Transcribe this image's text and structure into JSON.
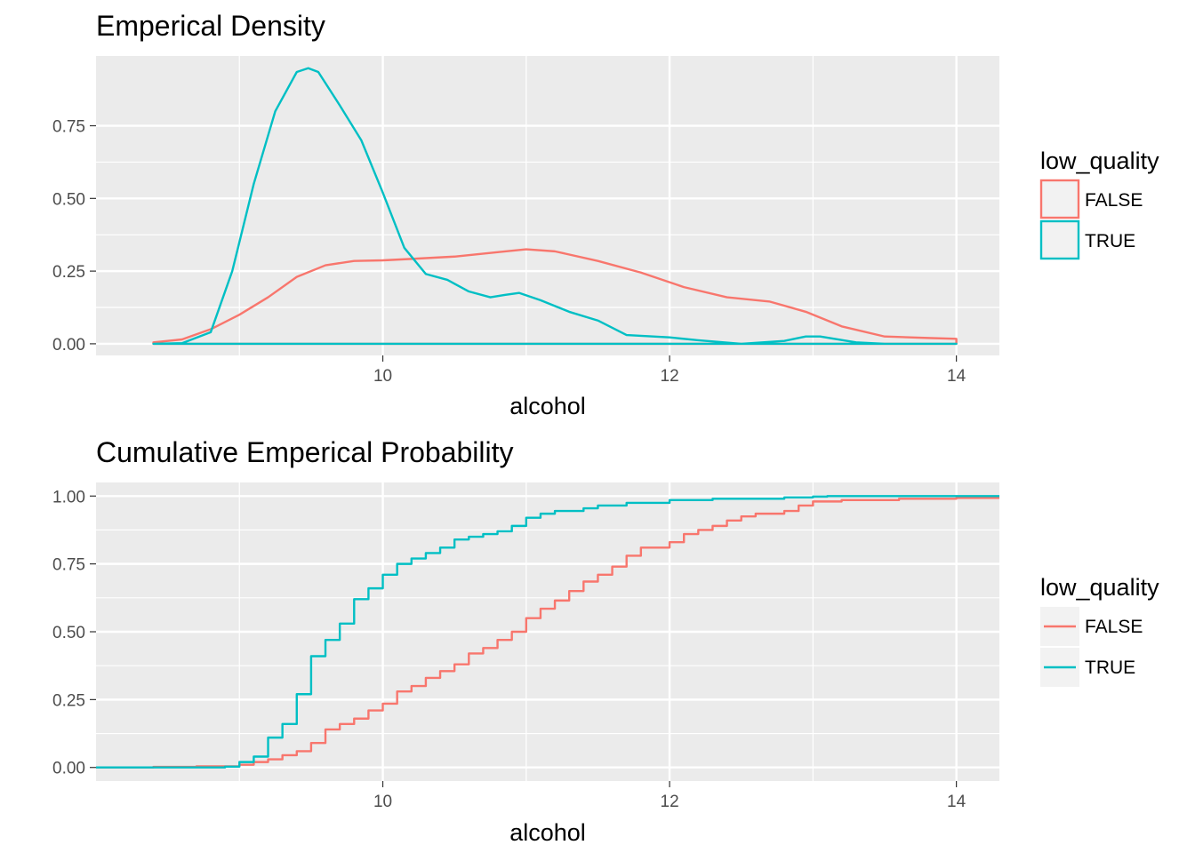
{
  "chart_data": [
    {
      "type": "line",
      "title": "Emperical Density",
      "xlabel": "alcohol",
      "ylabel": "",
      "xlim": [
        8.0,
        14.3
      ],
      "ylim": [
        -0.04,
        0.99
      ],
      "xticks": [
        10,
        12,
        14
      ],
      "xtick_labels": [
        "10",
        "12",
        "14"
      ],
      "yticks": [
        0,
        0.25,
        0.5,
        0.75
      ],
      "ytick_labels": [
        "0.00",
        "0.25",
        "0.50",
        "0.75"
      ],
      "grid": true,
      "legend": {
        "title": "low_quality",
        "placement": "right",
        "key_style": "outlined-box"
      },
      "series": [
        {
          "name": "FALSE",
          "color": "#F8766D",
          "closed_polygon": true,
          "points": [
            [
              8.4,
              0.005
            ],
            [
              8.6,
              0.015
            ],
            [
              8.8,
              0.05
            ],
            [
              9.0,
              0.1
            ],
            [
              9.2,
              0.16
            ],
            [
              9.4,
              0.23
            ],
            [
              9.6,
              0.27
            ],
            [
              9.8,
              0.285
            ],
            [
              10.0,
              0.287
            ],
            [
              10.2,
              0.292
            ],
            [
              10.5,
              0.3
            ],
            [
              10.8,
              0.315
            ],
            [
              11.0,
              0.325
            ],
            [
              11.2,
              0.318
            ],
            [
              11.5,
              0.285
            ],
            [
              11.8,
              0.245
            ],
            [
              12.1,
              0.195
            ],
            [
              12.4,
              0.16
            ],
            [
              12.7,
              0.145
            ],
            [
              12.95,
              0.11
            ],
            [
              13.2,
              0.06
            ],
            [
              13.5,
              0.025
            ],
            [
              13.8,
              0.02
            ],
            [
              14.0,
              0.017
            ]
          ]
        },
        {
          "name": "TRUE",
          "color": "#00BFC4",
          "closed_polygon": true,
          "points": [
            [
              8.4,
              0.0
            ],
            [
              8.6,
              0.002
            ],
            [
              8.8,
              0.04
            ],
            [
              8.95,
              0.25
            ],
            [
              9.1,
              0.55
            ],
            [
              9.25,
              0.8
            ],
            [
              9.4,
              0.935
            ],
            [
              9.48,
              0.948
            ],
            [
              9.55,
              0.935
            ],
            [
              9.7,
              0.82
            ],
            [
              9.85,
              0.7
            ],
            [
              10.0,
              0.52
            ],
            [
              10.15,
              0.33
            ],
            [
              10.3,
              0.24
            ],
            [
              10.45,
              0.22
            ],
            [
              10.6,
              0.18
            ],
            [
              10.75,
              0.16
            ],
            [
              10.85,
              0.168
            ],
            [
              10.95,
              0.175
            ],
            [
              11.1,
              0.15
            ],
            [
              11.3,
              0.11
            ],
            [
              11.5,
              0.08
            ],
            [
              11.7,
              0.03
            ],
            [
              12.0,
              0.022
            ],
            [
              12.2,
              0.012
            ],
            [
              12.5,
              0.0
            ],
            [
              12.8,
              0.01
            ],
            [
              12.95,
              0.025
            ],
            [
              13.05,
              0.025
            ],
            [
              13.3,
              0.005
            ],
            [
              13.5,
              0.0
            ],
            [
              14.0,
              0.0
            ]
          ]
        }
      ]
    },
    {
      "type": "line",
      "title": "Cumulative Emperical Probability",
      "xlabel": "alcohol",
      "ylabel": "",
      "xlim": [
        8.0,
        14.3
      ],
      "ylim": [
        -0.05,
        1.05
      ],
      "xticks": [
        10,
        12,
        14
      ],
      "xtick_labels": [
        "10",
        "12",
        "14"
      ],
      "yticks": [
        0,
        0.25,
        0.5,
        0.75,
        1.0
      ],
      "ytick_labels": [
        "0.00",
        "0.25",
        "0.50",
        "0.75",
        "1.00"
      ],
      "grid": true,
      "legend": {
        "title": "low_quality",
        "placement": "right",
        "key_style": "line"
      },
      "series": [
        {
          "name": "FALSE",
          "color": "#F8766D",
          "step": true,
          "points": [
            [
              8.0,
              0.0
            ],
            [
              8.4,
              0.002
            ],
            [
              8.7,
              0.004
            ],
            [
              9.0,
              0.01
            ],
            [
              9.1,
              0.02
            ],
            [
              9.2,
              0.03
            ],
            [
              9.3,
              0.045
            ],
            [
              9.4,
              0.06
            ],
            [
              9.5,
              0.09
            ],
            [
              9.6,
              0.14
            ],
            [
              9.7,
              0.16
            ],
            [
              9.8,
              0.18
            ],
            [
              9.9,
              0.21
            ],
            [
              10.0,
              0.235
            ],
            [
              10.1,
              0.28
            ],
            [
              10.2,
              0.3
            ],
            [
              10.3,
              0.33
            ],
            [
              10.4,
              0.355
            ],
            [
              10.5,
              0.38
            ],
            [
              10.6,
              0.42
            ],
            [
              10.7,
              0.44
            ],
            [
              10.8,
              0.47
            ],
            [
              10.9,
              0.5
            ],
            [
              11.0,
              0.55
            ],
            [
              11.1,
              0.585
            ],
            [
              11.2,
              0.615
            ],
            [
              11.3,
              0.65
            ],
            [
              11.4,
              0.685
            ],
            [
              11.5,
              0.71
            ],
            [
              11.6,
              0.74
            ],
            [
              11.7,
              0.78
            ],
            [
              11.8,
              0.81
            ],
            [
              12.0,
              0.83
            ],
            [
              12.1,
              0.86
            ],
            [
              12.2,
              0.875
            ],
            [
              12.3,
              0.89
            ],
            [
              12.4,
              0.91
            ],
            [
              12.5,
              0.925
            ],
            [
              12.6,
              0.935
            ],
            [
              12.8,
              0.945
            ],
            [
              12.9,
              0.965
            ],
            [
              13.0,
              0.98
            ],
            [
              13.2,
              0.985
            ],
            [
              13.6,
              0.99
            ],
            [
              14.0,
              0.993
            ],
            [
              14.3,
              1.0
            ]
          ]
        },
        {
          "name": "TRUE",
          "color": "#00BFC4",
          "step": true,
          "points": [
            [
              8.0,
              0.0
            ],
            [
              8.9,
              0.003
            ],
            [
              9.0,
              0.02
            ],
            [
              9.1,
              0.04
            ],
            [
              9.2,
              0.11
            ],
            [
              9.3,
              0.16
            ],
            [
              9.4,
              0.27
            ],
            [
              9.5,
              0.41
            ],
            [
              9.6,
              0.47
            ],
            [
              9.7,
              0.53
            ],
            [
              9.8,
              0.62
            ],
            [
              9.9,
              0.66
            ],
            [
              10.0,
              0.71
            ],
            [
              10.1,
              0.75
            ],
            [
              10.2,
              0.77
            ],
            [
              10.3,
              0.79
            ],
            [
              10.4,
              0.81
            ],
            [
              10.5,
              0.84
            ],
            [
              10.6,
              0.85
            ],
            [
              10.7,
              0.86
            ],
            [
              10.8,
              0.87
            ],
            [
              10.9,
              0.89
            ],
            [
              11.0,
              0.92
            ],
            [
              11.1,
              0.935
            ],
            [
              11.2,
              0.945
            ],
            [
              11.4,
              0.955
            ],
            [
              11.5,
              0.965
            ],
            [
              11.7,
              0.975
            ],
            [
              12.0,
              0.985
            ],
            [
              12.3,
              0.99
            ],
            [
              12.8,
              0.995
            ],
            [
              13.0,
              0.998
            ],
            [
              13.1,
              1.0
            ],
            [
              14.3,
              1.0
            ]
          ]
        }
      ]
    }
  ]
}
